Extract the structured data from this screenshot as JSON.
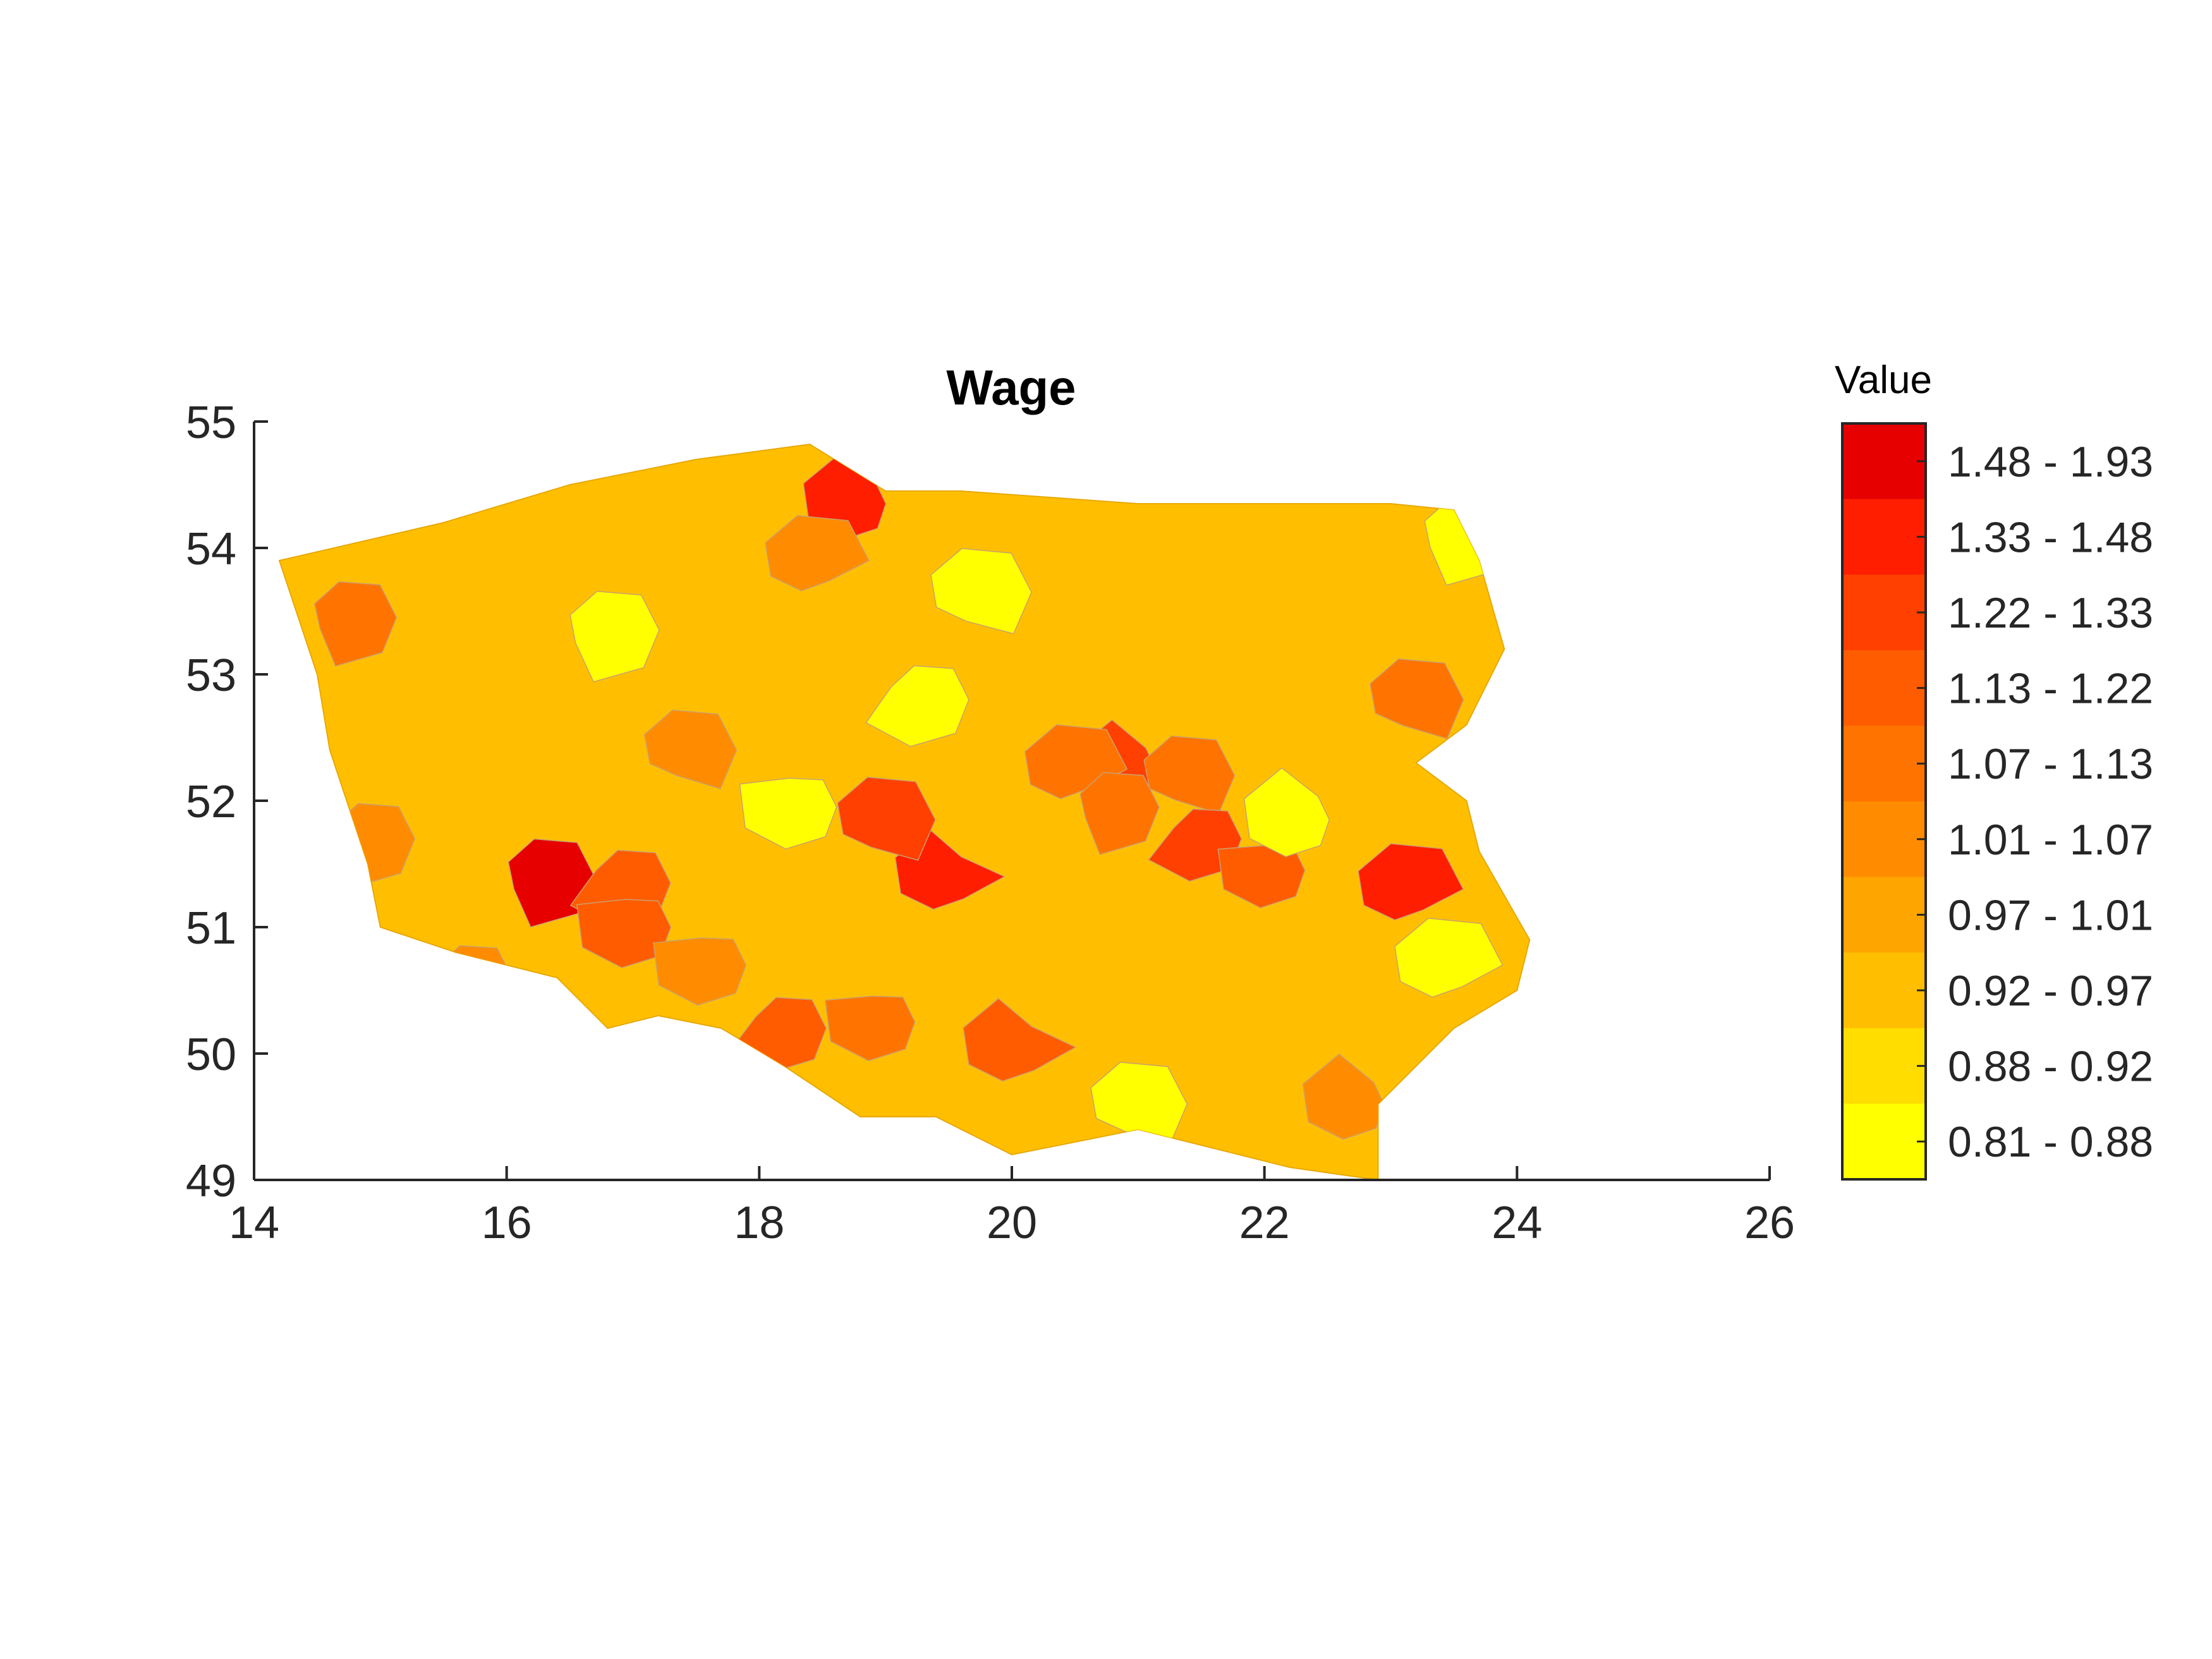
{
  "title": "Wage",
  "axes": {
    "x_ticks": [
      "14",
      "16",
      "18",
      "20",
      "22",
      "24",
      "26"
    ],
    "y_ticks": [
      "55",
      "54",
      "53",
      "52",
      "51",
      "50",
      "49"
    ],
    "xlim": [
      14,
      26
    ],
    "ylim": [
      49,
      55
    ]
  },
  "legend": {
    "title": "Value",
    "placement": "right",
    "bins": [
      {
        "label": "1.48 - 1.93",
        "color": "#e60000"
      },
      {
        "label": "1.33 - 1.48",
        "color": "#ff1e00"
      },
      {
        "label": "1.22 - 1.33",
        "color": "#ff4000"
      },
      {
        "label": "1.13 - 1.22",
        "color": "#ff5c00"
      },
      {
        "label": "1.07 - 1.13",
        "color": "#ff7400"
      },
      {
        "label": "1.01 - 1.07",
        "color": "#ff8c00"
      },
      {
        "label": "0.97 - 1.01",
        "color": "#ffa500"
      },
      {
        "label": "0.92 - 0.97",
        "color": "#ffbf00"
      },
      {
        "label": "0.88 - 0.92",
        "color": "#ffdd00"
      },
      {
        "label": "0.81 - 0.88",
        "color": "#ffff00"
      }
    ]
  },
  "chart_data": {
    "type": "choropleth",
    "region": "Poland",
    "title": "Wage",
    "xlim": [
      14,
      26
    ],
    "ylim": [
      49,
      55
    ],
    "legend_title": "Value",
    "classes": [
      "0.81 - 0.88",
      "0.88 - 0.92",
      "0.92 - 0.97",
      "0.97 - 1.01",
      "1.01 - 1.07",
      "1.07 - 1.13",
      "1.13 - 1.22",
      "1.22 - 1.33",
      "1.33 - 1.48",
      "1.48 - 1.93"
    ],
    "outline": [
      [
        14.2,
        53.9
      ],
      [
        15.5,
        54.2
      ],
      [
        16.5,
        54.5
      ],
      [
        17.5,
        54.7
      ],
      [
        18.4,
        54.82
      ],
      [
        19.0,
        54.45
      ],
      [
        19.6,
        54.45
      ],
      [
        21.0,
        54.35
      ],
      [
        22.0,
        54.35
      ],
      [
        23.0,
        54.35
      ],
      [
        23.5,
        54.3
      ],
      [
        23.7,
        53.9
      ],
      [
        23.9,
        53.2
      ],
      [
        23.6,
        52.6
      ],
      [
        23.2,
        52.3
      ],
      [
        23.6,
        52.0
      ],
      [
        23.7,
        51.6
      ],
      [
        24.1,
        50.9
      ],
      [
        24.0,
        50.5
      ],
      [
        23.5,
        50.2
      ],
      [
        22.9,
        49.6
      ],
      [
        22.9,
        49.0
      ],
      [
        22.2,
        49.1
      ],
      [
        21.0,
        49.4
      ],
      [
        20.0,
        49.2
      ],
      [
        19.4,
        49.5
      ],
      [
        18.8,
        49.5
      ],
      [
        18.2,
        49.9
      ],
      [
        17.7,
        50.2
      ],
      [
        17.2,
        50.3
      ],
      [
        16.8,
        50.2
      ],
      [
        16.4,
        50.6
      ],
      [
        15.6,
        50.8
      ],
      [
        15.0,
        51.0
      ],
      [
        14.9,
        51.5
      ],
      [
        14.6,
        52.4
      ],
      [
        14.5,
        53.0
      ],
      [
        14.2,
        53.9
      ]
    ],
    "districts": [
      {
        "lon": 20.9,
        "lat": 52.25,
        "class": "1.22 - 1.33"
      },
      {
        "lon": 20.45,
        "lat": 52.25,
        "class": "1.07 - 1.13"
      },
      {
        "lon": 21.35,
        "lat": 52.2,
        "class": "1.07 - 1.13"
      },
      {
        "lon": 20.8,
        "lat": 51.95,
        "class": "1.07 - 1.13"
      },
      {
        "lon": 21.5,
        "lat": 51.7,
        "class": "1.22 - 1.33"
      },
      {
        "lon": 22.05,
        "lat": 51.45,
        "class": "1.13 - 1.22"
      },
      {
        "lon": 19.45,
        "lat": 51.4,
        "class": "1.33 - 1.48"
      },
      {
        "lon": 18.95,
        "lat": 51.85,
        "class": "1.22 - 1.33"
      },
      {
        "lon": 16.3,
        "lat": 51.4,
        "class": "1.48 - 1.93"
      },
      {
        "lon": 16.95,
        "lat": 51.35,
        "class": "1.13 - 1.22"
      },
      {
        "lon": 17.0,
        "lat": 51.0,
        "class": "1.13 - 1.22"
      },
      {
        "lon": 18.75,
        "lat": 54.35,
        "class": "1.33 - 1.48"
      },
      {
        "lon": 23.1,
        "lat": 51.3,
        "class": "1.33 - 1.48"
      },
      {
        "lon": 23.15,
        "lat": 52.8,
        "class": "1.07 - 1.13"
      },
      {
        "lon": 14.75,
        "lat": 53.45,
        "class": "1.07 - 1.13"
      },
      {
        "lon": 18.2,
        "lat": 50.2,
        "class": "1.13 - 1.22"
      },
      {
        "lon": 18.95,
        "lat": 50.25,
        "class": "1.07 - 1.13"
      },
      {
        "lon": 20.0,
        "lat": 50.05,
        "class": "1.13 - 1.22"
      },
      {
        "lon": 19.7,
        "lat": 53.65,
        "class": "0.81 - 0.88"
      },
      {
        "lon": 16.8,
        "lat": 53.35,
        "class": "0.81 - 0.88"
      },
      {
        "lon": 19.3,
        "lat": 52.8,
        "class": "0.81 - 0.88"
      },
      {
        "lon": 18.3,
        "lat": 51.95,
        "class": "0.81 - 0.88"
      },
      {
        "lon": 22.25,
        "lat": 51.85,
        "class": "0.81 - 0.88"
      },
      {
        "lon": 23.4,
        "lat": 50.7,
        "class": "0.81 - 0.88"
      },
      {
        "lon": 20.95,
        "lat": 49.6,
        "class": "0.81 - 0.88"
      },
      {
        "lon": 23.55,
        "lat": 54.1,
        "class": "0.81 - 0.88"
      },
      {
        "lon": 15.7,
        "lat": 50.6,
        "class": "1.01 - 1.07"
      },
      {
        "lon": 17.6,
        "lat": 50.7,
        "class": "1.01 - 1.07"
      },
      {
        "lon": 22.7,
        "lat": 49.6,
        "class": "1.01 - 1.07"
      },
      {
        "lon": 18.4,
        "lat": 53.9,
        "class": "1.01 - 1.07"
      },
      {
        "lon": 17.4,
        "lat": 52.4,
        "class": "1.01 - 1.07"
      },
      {
        "lon": 14.9,
        "lat": 51.7,
        "class": "1.01 - 1.07"
      }
    ]
  }
}
